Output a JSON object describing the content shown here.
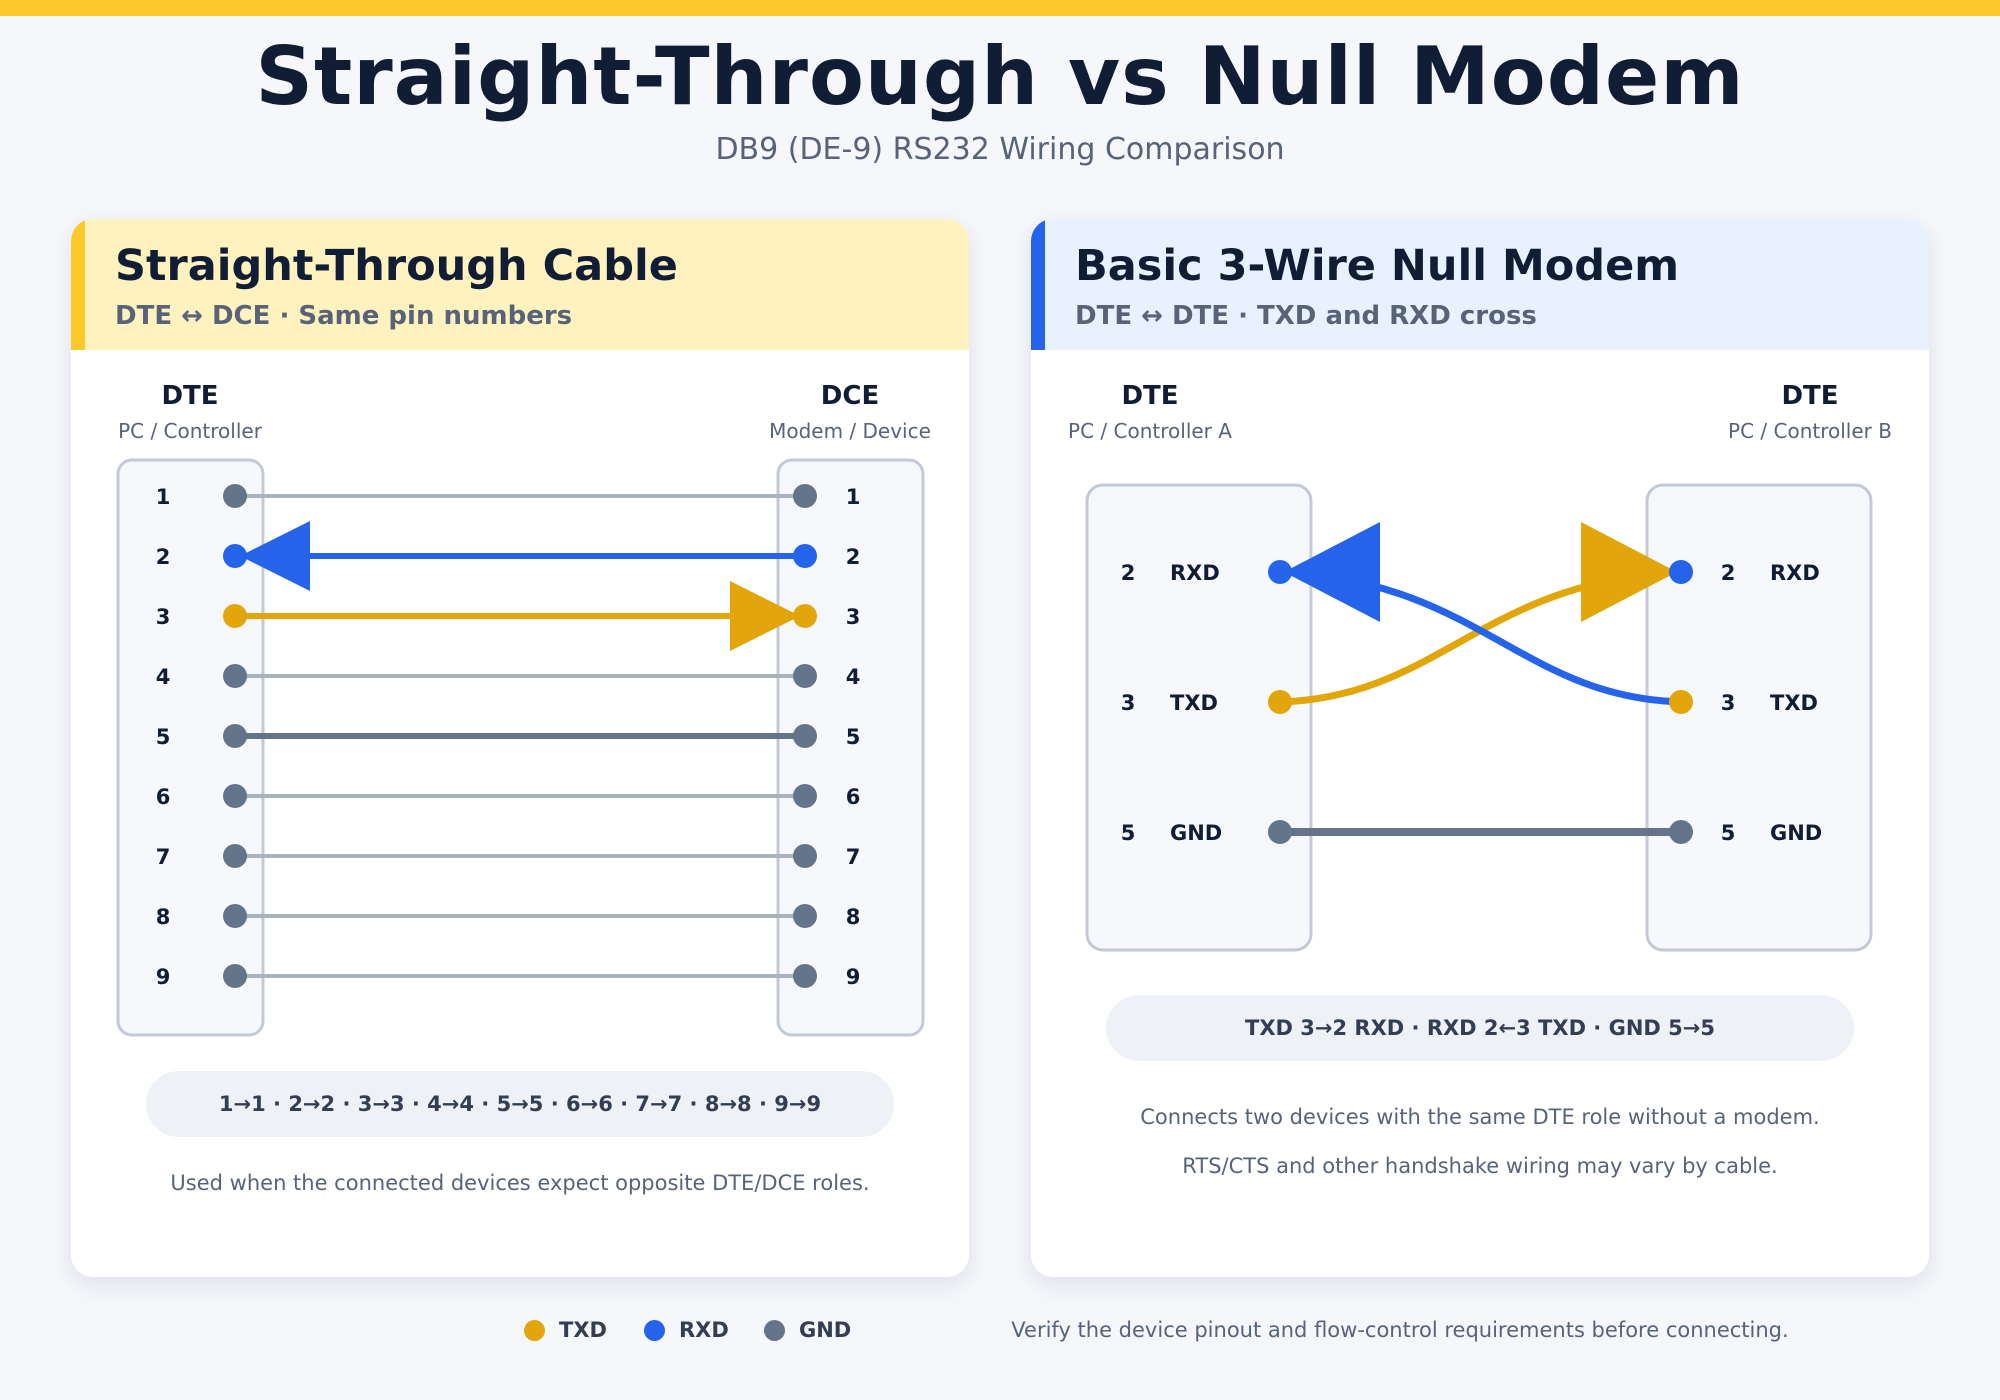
{
  "header": {
    "title": "Straight-Through vs Null Modem",
    "subtitle": "DB9 (DE-9) RS232 Wiring Comparison"
  },
  "colors": {
    "txd": "#e2a60a",
    "rxd": "#2563eb",
    "gnd": "#64748b",
    "unused": "#a8b3bf"
  },
  "straight": {
    "title": "Straight-Through Cable",
    "subtitle": "DTE ↔ DCE · Same pin numbers",
    "left_role": "DTE",
    "left_device": "PC / Controller",
    "right_role": "DCE",
    "right_device": "Modem / Device",
    "pins": [
      "1",
      "2",
      "3",
      "4",
      "5",
      "6",
      "7",
      "8",
      "9"
    ],
    "summary": "1→1 · 2→2 · 3→3 · 4→4 · 5→5 · 6→6 · 7→7 · 8→8 · 9→9",
    "note": "Used when the connected devices expect opposite DTE/DCE roles."
  },
  "nullmodem": {
    "title": "Basic 3-Wire Null Modem",
    "subtitle": "DTE ↔ DTE · TXD and RXD cross",
    "left_role": "DTE",
    "left_device": "PC / Controller A",
    "right_role": "DTE",
    "right_device": "PC / Controller B",
    "pins": [
      {
        "num": "2",
        "name": "RXD"
      },
      {
        "num": "3",
        "name": "TXD"
      },
      {
        "num": "5",
        "name": "GND"
      }
    ],
    "summary": "TXD 3→2 RXD · RXD 2←3 TXD · GND 5→5",
    "note_1": "Connects two devices with the same DTE role without a modem.",
    "note_2": "RTS/CTS and other handshake wiring may vary by cable."
  },
  "legend": [
    {
      "label": "TXD",
      "color": "#e2a60a"
    },
    {
      "label": "RXD",
      "color": "#2563eb"
    },
    {
      "label": "GND",
      "color": "#64748b"
    }
  ],
  "footnote": "Verify the device pinout and flow-control requirements before connecting."
}
